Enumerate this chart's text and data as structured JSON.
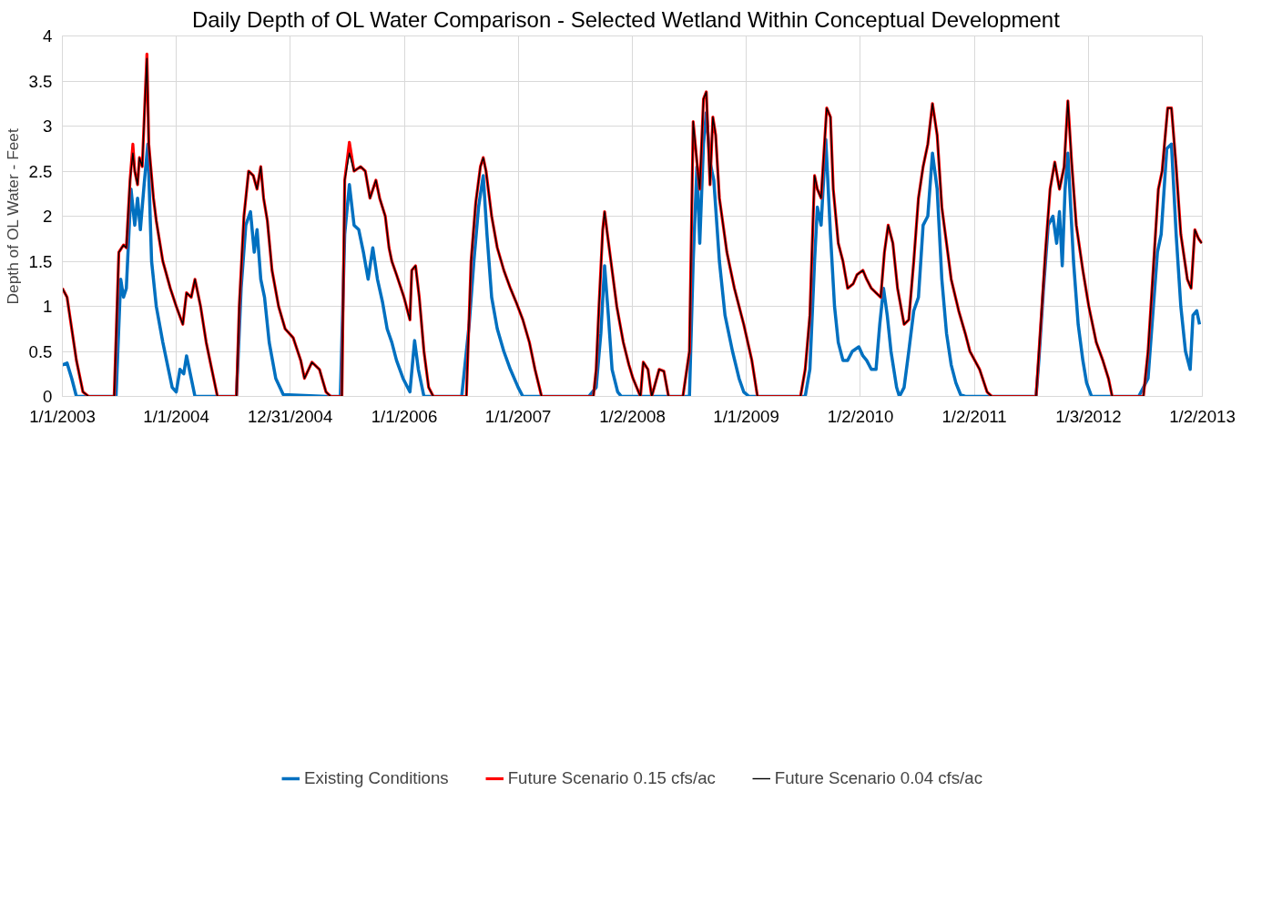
{
  "chart_data": {
    "type": "line",
    "title": "Daily Depth of OL Water Comparison - Selected  Wetland Within Conceptual  Development",
    "ylabel": "Depth of OL Water - Feet",
    "xlim": [
      "2003-01-01",
      "2013-01-02"
    ],
    "xticks": [
      {
        "value": "2003-01-01",
        "label": "1/1/2003"
      },
      {
        "value": "2004-01-01",
        "label": "1/1/2004"
      },
      {
        "value": "2004-12-31",
        "label": "12/31/2004"
      },
      {
        "value": "2006-01-01",
        "label": "1/1/2006"
      },
      {
        "value": "2007-01-01",
        "label": "1/1/2007"
      },
      {
        "value": "2008-01-02",
        "label": "1/2/2008"
      },
      {
        "value": "2009-01-01",
        "label": "1/1/2009"
      },
      {
        "value": "2010-01-02",
        "label": "1/2/2010"
      },
      {
        "value": "2011-01-02",
        "label": "1/2/2011"
      },
      {
        "value": "2012-01-03",
        "label": "1/3/2012"
      },
      {
        "value": "2013-01-02",
        "label": "1/2/2013"
      }
    ],
    "ylim": [
      0,
      4
    ],
    "yticks": [
      0,
      0.5,
      1,
      1.5,
      2,
      2.5,
      3,
      3.5,
      4
    ],
    "grid": true,
    "legend": "bottom",
    "marker": "none",
    "line_style": "solid",
    "x": [
      "2003-01-01",
      "2003-01-16",
      "2003-01-31",
      "2003-02-15",
      "2003-03-08",
      "2003-03-26",
      "2003-04-07",
      "2003-06-16",
      "2003-07-01",
      "2003-07-16",
      "2003-07-25",
      "2003-08-06",
      "2003-08-15",
      "2003-08-21",
      "2003-08-30",
      "2003-09-05",
      "2003-09-14",
      "2003-09-23",
      "2003-09-29",
      "2003-10-05",
      "2003-10-20",
      "2003-10-29",
      "2003-11-19",
      "2003-12-13",
      "2004-01-01",
      "2004-01-22",
      "2004-02-03",
      "2004-02-18",
      "2004-03-01",
      "2004-03-19",
      "2004-04-06",
      "2004-04-24",
      "2004-05-12",
      "2004-07-12",
      "2004-07-21",
      "2004-08-05",
      "2004-08-20",
      "2004-09-04",
      "2004-09-16",
      "2004-09-28",
      "2004-10-07",
      "2004-10-19",
      "2004-11-03",
      "2004-11-24",
      "2004-12-15",
      "2005-01-10",
      "2005-02-03",
      "2005-02-15",
      "2005-03-11",
      "2005-04-04",
      "2005-04-25",
      "2005-05-10",
      "2005-06-15",
      "2005-06-24",
      "2005-07-09",
      "2005-07-24",
      "2005-08-14",
      "2005-08-29",
      "2005-09-13",
      "2005-10-02",
      "2005-10-14",
      "2005-11-01",
      "2005-11-13",
      "2005-11-22",
      "2005-12-07",
      "2005-12-31",
      "2006-01-19",
      "2006-01-25",
      "2006-02-06",
      "2006-02-18",
      "2006-03-05",
      "2006-03-20",
      "2006-04-04",
      "2006-07-19",
      "2006-08-03",
      "2006-08-18",
      "2006-09-02",
      "2006-09-11",
      "2006-09-20",
      "2006-10-08",
      "2006-10-26",
      "2006-11-16",
      "2006-12-07",
      "2006-12-25",
      "2007-01-16",
      "2007-02-06",
      "2007-02-24",
      "2007-03-17",
      "2007-08-30",
      "2007-09-08",
      "2007-09-17",
      "2007-09-29",
      "2007-10-05",
      "2007-10-14",
      "2007-10-29",
      "2007-11-13",
      "2007-12-04",
      "2007-12-22",
      "2008-01-04",
      "2008-01-28",
      "2008-02-06",
      "2008-02-21",
      "2008-03-04",
      "2008-03-28",
      "2008-04-12",
      "2008-04-27",
      "2008-06-12",
      "2008-07-03",
      "2008-07-15",
      "2008-07-27",
      "2008-08-05",
      "2008-08-17",
      "2008-08-26",
      "2008-09-07",
      "2008-09-16",
      "2008-09-25",
      "2008-10-07",
      "2008-10-19",
      "2008-10-31",
      "2008-11-24",
      "2008-12-24",
      "2009-01-19",
      "2009-02-06",
      "2009-06-24",
      "2009-07-09",
      "2009-07-24",
      "2009-08-08",
      "2009-08-17",
      "2009-08-29",
      "2009-09-16",
      "2009-09-28",
      "2009-10-07",
      "2009-10-23",
      "2009-11-07",
      "2009-11-22",
      "2009-12-10",
      "2009-12-22",
      "2010-01-10",
      "2010-01-22",
      "2010-02-06",
      "2010-02-21",
      "2010-03-08",
      "2010-03-20",
      "2010-04-01",
      "2010-04-16",
      "2010-05-01",
      "2010-05-22",
      "2010-06-06",
      "2010-06-22",
      "2010-07-07",
      "2010-07-22",
      "2010-08-06",
      "2010-08-21",
      "2010-09-05",
      "2010-09-20",
      "2010-10-05",
      "2010-10-20",
      "2010-11-13",
      "2010-12-04",
      "2010-12-19",
      "2011-01-19",
      "2011-02-12",
      "2011-02-27",
      "2011-07-19",
      "2011-08-03",
      "2011-08-18",
      "2011-09-02",
      "2011-09-17",
      "2011-10-02",
      "2011-10-17",
      "2011-10-29",
      "2011-11-10",
      "2011-11-25",
      "2011-12-16",
      "2012-01-04",
      "2012-01-28",
      "2012-02-18",
      "2012-03-07",
      "2012-03-19",
      "2012-06-27",
      "2012-07-12",
      "2012-08-02",
      "2012-08-14",
      "2012-08-26",
      "2012-09-13",
      "2012-09-25",
      "2012-10-10",
      "2012-10-25",
      "2012-11-15",
      "2012-11-27",
      "2012-12-09",
      "2012-12-21",
      "2012-12-31"
    ],
    "series": [
      {
        "name": "Existing Conditions",
        "color": "#0070c0",
        "x": [
          "2003-01-01",
          "2003-01-16",
          "2003-01-31",
          "2003-02-15",
          "2003-06-22",
          "2003-07-07",
          "2003-07-16",
          "2003-07-25",
          "2003-08-09",
          "2003-08-21",
          "2003-08-30",
          "2003-09-08",
          "2003-09-20",
          "2003-10-02",
          "2003-10-14",
          "2003-10-29",
          "2003-11-19",
          "2003-12-07",
          "2003-12-19",
          "2004-01-01",
          "2004-01-13",
          "2004-01-25",
          "2004-02-03",
          "2004-02-18",
          "2004-03-01",
          "2004-07-12",
          "2004-07-27",
          "2004-08-11",
          "2004-08-26",
          "2004-09-07",
          "2004-09-16",
          "2004-09-28",
          "2004-10-10",
          "2004-10-25",
          "2004-11-15",
          "2004-12-09",
          "2005-04-25",
          "2005-06-10",
          "2005-06-24",
          "2005-07-09",
          "2005-07-24",
          "2005-08-08",
          "2005-08-23",
          "2005-09-07",
          "2005-09-22",
          "2005-10-07",
          "2005-10-23",
          "2005-11-07",
          "2005-11-22",
          "2005-12-07",
          "2005-12-28",
          "2006-01-19",
          "2006-02-03",
          "2006-02-15",
          "2006-03-05",
          "2006-07-04",
          "2006-07-28",
          "2006-08-12",
          "2006-08-27",
          "2006-09-11",
          "2006-09-23",
          "2006-10-08",
          "2006-10-26",
          "2006-11-16",
          "2006-12-07",
          "2007-01-01",
          "2007-01-16",
          "2007-08-15",
          "2007-09-08",
          "2007-09-23",
          "2007-10-05",
          "2007-10-17",
          "2007-10-29",
          "2007-11-16",
          "2007-11-28",
          "2008-07-03",
          "2008-07-15",
          "2008-07-27",
          "2008-08-05",
          "2008-08-17",
          "2008-08-26",
          "2008-09-07",
          "2008-09-19",
          "2008-10-07",
          "2008-10-25",
          "2008-11-18",
          "2008-12-09",
          "2008-12-24",
          "2009-01-10",
          "2009-07-09",
          "2009-07-24",
          "2009-08-08",
          "2009-08-17",
          "2009-08-29",
          "2009-09-13",
          "2009-09-28",
          "2009-10-11",
          "2009-10-23",
          "2009-11-07",
          "2009-11-22",
          "2009-12-07",
          "2009-12-28",
          "2010-01-10",
          "2010-01-22",
          "2010-02-06",
          "2010-02-21",
          "2010-03-05",
          "2010-03-17",
          "2010-03-29",
          "2010-04-10",
          "2010-04-28",
          "2010-05-07",
          "2010-05-22",
          "2010-06-06",
          "2010-06-22",
          "2010-07-07",
          "2010-07-22",
          "2010-08-06",
          "2010-08-21",
          "2010-09-05",
          "2010-09-20",
          "2010-10-05",
          "2010-10-20",
          "2010-11-04",
          "2010-11-19",
          "2010-12-04",
          "2011-07-19",
          "2011-07-28",
          "2011-08-12",
          "2011-08-27",
          "2011-09-11",
          "2011-09-23",
          "2011-10-02",
          "2011-10-11",
          "2011-10-20",
          "2011-10-29",
          "2011-11-16",
          "2011-12-01",
          "2011-12-16",
          "2011-12-28",
          "2012-01-13",
          "2012-06-12",
          "2012-07-12",
          "2012-07-27",
          "2012-08-11",
          "2012-08-23",
          "2012-09-10",
          "2012-09-25",
          "2012-10-10",
          "2012-10-25",
          "2012-11-09",
          "2012-11-24",
          "2012-12-03",
          "2012-12-15",
          "2012-12-24"
        ],
        "values": [
          0.35,
          0.37,
          0.2,
          0,
          0,
          1.3,
          1.1,
          1.2,
          2.3,
          1.9,
          2.2,
          1.85,
          2.35,
          2.8,
          1.5,
          1,
          0.6,
          0.3,
          0.1,
          0.05,
          0.3,
          0.25,
          0.45,
          0.2,
          0,
          0,
          1.2,
          1.9,
          2.05,
          1.6,
          1.85,
          1.3,
          1.1,
          0.6,
          0.2,
          0.02,
          0,
          0,
          1.8,
          2.35,
          1.9,
          1.85,
          1.6,
          1.3,
          1.65,
          1.3,
          1.05,
          0.75,
          0.6,
          0.4,
          0.2,
          0.05,
          0.62,
          0.3,
          0,
          0,
          0.8,
          1.5,
          2.1,
          2.45,
          1.8,
          1.1,
          0.75,
          0.5,
          0.3,
          0.1,
          0,
          0,
          0.1,
          0.7,
          1.45,
          0.9,
          0.3,
          0.05,
          0,
          0,
          1.5,
          2.55,
          1.7,
          2.8,
          3.15,
          2.6,
          2.4,
          1.5,
          0.9,
          0.5,
          0.2,
          0.05,
          0,
          0,
          0.3,
          1.5,
          2.1,
          1.9,
          2.85,
          1.8,
          1,
          0.6,
          0.4,
          0.4,
          0.5,
          0.55,
          0.45,
          0.4,
          0.3,
          0.3,
          0.8,
          1.2,
          0.9,
          0.5,
          0.1,
          0,
          0.1,
          0.5,
          0.95,
          1.1,
          1.9,
          2,
          2.7,
          2.3,
          1.3,
          0.7,
          0.35,
          0.15,
          0.02,
          0,
          0,
          0.4,
          1.2,
          1.9,
          2,
          1.7,
          2.05,
          1.45,
          2.3,
          2.7,
          1.5,
          0.8,
          0.4,
          0.15,
          0,
          0,
          0.2,
          0.9,
          1.6,
          1.8,
          2.75,
          2.8,
          1.8,
          1,
          0.5,
          0.3,
          0.9,
          0.95,
          0.8
        ]
      },
      {
        "name": "Future Scenario 0.15 cfs/ac",
        "color": "#ff0000",
        "values": [
          1.2,
          1.1,
          0.75,
          0.4,
          0.05,
          0,
          0,
          0,
          1.6,
          1.68,
          1.65,
          2.4,
          2.8,
          2.5,
          2.35,
          2.65,
          2.55,
          3.3,
          3.8,
          2.8,
          2.2,
          1.95,
          1.5,
          1.2,
          1,
          0.8,
          1.15,
          1.1,
          1.3,
          1,
          0.6,
          0.3,
          0,
          0,
          1,
          2,
          2.5,
          2.45,
          2.3,
          2.55,
          2.2,
          1.95,
          1.4,
          1,
          0.75,
          0.65,
          0.4,
          0.2,
          0.38,
          0.3,
          0.05,
          0,
          0,
          2.4,
          2.82,
          2.5,
          2.55,
          2.5,
          2.2,
          2.4,
          2.2,
          2,
          1.65,
          1.5,
          1.35,
          1.1,
          0.85,
          1.4,
          1.45,
          1.1,
          0.5,
          0.1,
          0,
          0,
          1.5,
          2.15,
          2.55,
          2.65,
          2.5,
          2,
          1.65,
          1.4,
          1.2,
          1.05,
          0.85,
          0.6,
          0.3,
          0,
          0,
          0.3,
          1,
          1.85,
          2.05,
          1.8,
          1.4,
          1,
          0.6,
          0.35,
          0.2,
          0,
          0.38,
          0.3,
          0,
          0.3,
          0.28,
          0,
          0,
          0.5,
          3.05,
          2.6,
          2.3,
          3.3,
          3.38,
          2.35,
          3.1,
          2.9,
          2.2,
          1.9,
          1.6,
          1.2,
          0.8,
          0.4,
          0,
          0,
          0.3,
          0.9,
          2.45,
          2.3,
          2.2,
          3.2,
          3.1,
          2.3,
          1.7,
          1.5,
          1.2,
          1.25,
          1.35,
          1.4,
          1.3,
          1.2,
          1.15,
          1.1,
          1.6,
          1.9,
          1.7,
          1.2,
          0.8,
          0.85,
          1.5,
          2.2,
          2.55,
          2.8,
          3.25,
          2.9,
          2.1,
          1.7,
          1.3,
          0.95,
          0.7,
          0.5,
          0.3,
          0.05,
          0,
          0,
          0.8,
          1.6,
          2.3,
          2.6,
          2.3,
          2.55,
          3.28,
          2.6,
          1.9,
          1.4,
          1,
          0.6,
          0.4,
          0.2,
          0,
          0,
          0.5,
          1.65,
          2.3,
          2.5,
          3.2,
          3.2,
          2.55,
          1.8,
          1.3,
          1.2,
          1.85,
          1.75,
          1.7
        ]
      },
      {
        "name": "Future Scenario 0.04 cfs/ac",
        "color": "#000000",
        "values": [
          1.2,
          1.1,
          0.75,
          0.4,
          0.05,
          0,
          0,
          0,
          1.6,
          1.68,
          1.65,
          2.4,
          2.7,
          2.5,
          2.35,
          2.65,
          2.55,
          3.3,
          3.75,
          2.8,
          2.2,
          1.95,
          1.5,
          1.2,
          1,
          0.8,
          1.15,
          1.1,
          1.3,
          1,
          0.6,
          0.3,
          0,
          0,
          1,
          2,
          2.5,
          2.45,
          2.3,
          2.55,
          2.2,
          1.95,
          1.4,
          1,
          0.75,
          0.65,
          0.4,
          0.2,
          0.38,
          0.3,
          0.05,
          0,
          0,
          2.4,
          2.7,
          2.5,
          2.55,
          2.5,
          2.2,
          2.4,
          2.2,
          2,
          1.65,
          1.5,
          1.35,
          1.1,
          0.85,
          1.4,
          1.45,
          1.1,
          0.5,
          0.1,
          0,
          0,
          1.5,
          2.15,
          2.55,
          2.65,
          2.5,
          2,
          1.65,
          1.4,
          1.2,
          1.05,
          0.85,
          0.6,
          0.3,
          0,
          0,
          0.3,
          1,
          1.85,
          2.05,
          1.8,
          1.4,
          1,
          0.6,
          0.35,
          0.2,
          0,
          0.38,
          0.3,
          0,
          0.3,
          0.28,
          0,
          0,
          0.5,
          3.05,
          2.6,
          2.3,
          3.3,
          3.38,
          2.35,
          3.1,
          2.9,
          2.2,
          1.9,
          1.6,
          1.2,
          0.8,
          0.4,
          0,
          0,
          0.3,
          0.9,
          2.45,
          2.3,
          2.2,
          3.2,
          3.1,
          2.3,
          1.7,
          1.5,
          1.2,
          1.25,
          1.35,
          1.4,
          1.3,
          1.2,
          1.15,
          1.1,
          1.6,
          1.9,
          1.7,
          1.2,
          0.8,
          0.85,
          1.5,
          2.2,
          2.55,
          2.8,
          3.25,
          2.9,
          2.1,
          1.7,
          1.3,
          0.95,
          0.7,
          0.5,
          0.3,
          0.05,
          0,
          0,
          0.8,
          1.6,
          2.3,
          2.6,
          2.3,
          2.55,
          3.28,
          2.6,
          1.9,
          1.4,
          1,
          0.6,
          0.4,
          0.2,
          0,
          0,
          0.5,
          1.65,
          2.3,
          2.5,
          3.2,
          3.2,
          2.55,
          1.8,
          1.3,
          1.2,
          1.85,
          1.75,
          1.7
        ]
      }
    ]
  }
}
